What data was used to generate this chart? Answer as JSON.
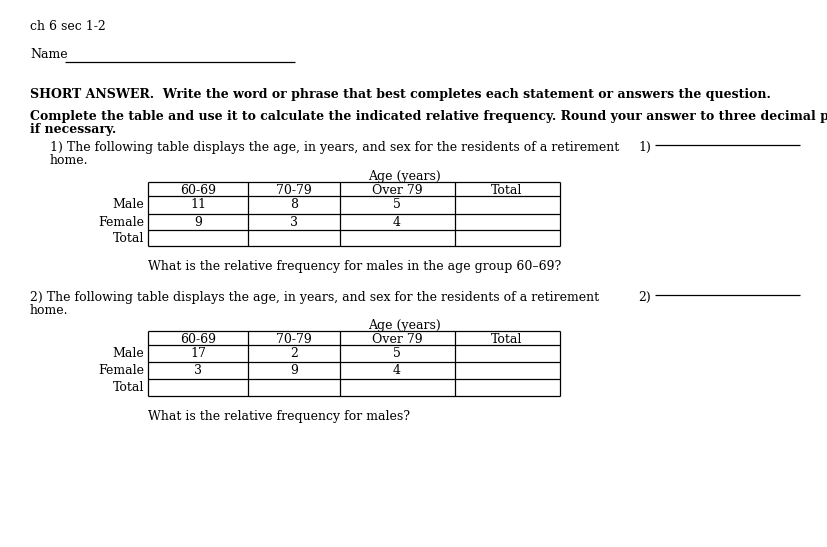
{
  "bg_color": "#ffffff",
  "header": "ch 6 sec 1-2",
  "name_label": "Name",
  "short_answer": "SHORT ANSWER.  Write the word or phrase that best completes each statement or answers the question.",
  "complete1": "Complete the table and use it to calculate the indicated relative frequency. Round your answer to three decimal places",
  "complete2": "if necessary.",
  "q1_text1": "1) The following table displays the age, in years, and sex for the residents of a retirement",
  "q1_text2": "home.",
  "q1_num": "1)",
  "q1_age": "Age (years)",
  "q1_cols": [
    "60-69",
    "70-79",
    "Over 79",
    "Total"
  ],
  "q1_rows": [
    [
      "Male",
      "11",
      "8",
      "5",
      ""
    ],
    [
      "Female",
      "9",
      "3",
      "4",
      ""
    ],
    [
      "Total",
      "",
      "",
      "",
      ""
    ]
  ],
  "q1_q": "What is the relative frequency for males in the age group 60–69?",
  "q2_text1": "2) The following table displays the age, in years, and sex for the residents of a retirement",
  "q2_text2": "home.",
  "q2_num": "2)",
  "q2_age": "Age (years)",
  "q2_cols": [
    "60-69",
    "70-79",
    "Over 79",
    "Total"
  ],
  "q2_rows": [
    [
      "Male",
      "17",
      "2",
      "5",
      ""
    ],
    [
      "Female",
      "3",
      "9",
      "4",
      ""
    ],
    [
      "Total",
      "",
      "",
      "",
      ""
    ]
  ],
  "q2_q": "What is the relative frequency for males?",
  "nfs": 9.0,
  "bfs": 9.0,
  "ff": "DejaVu Serif"
}
